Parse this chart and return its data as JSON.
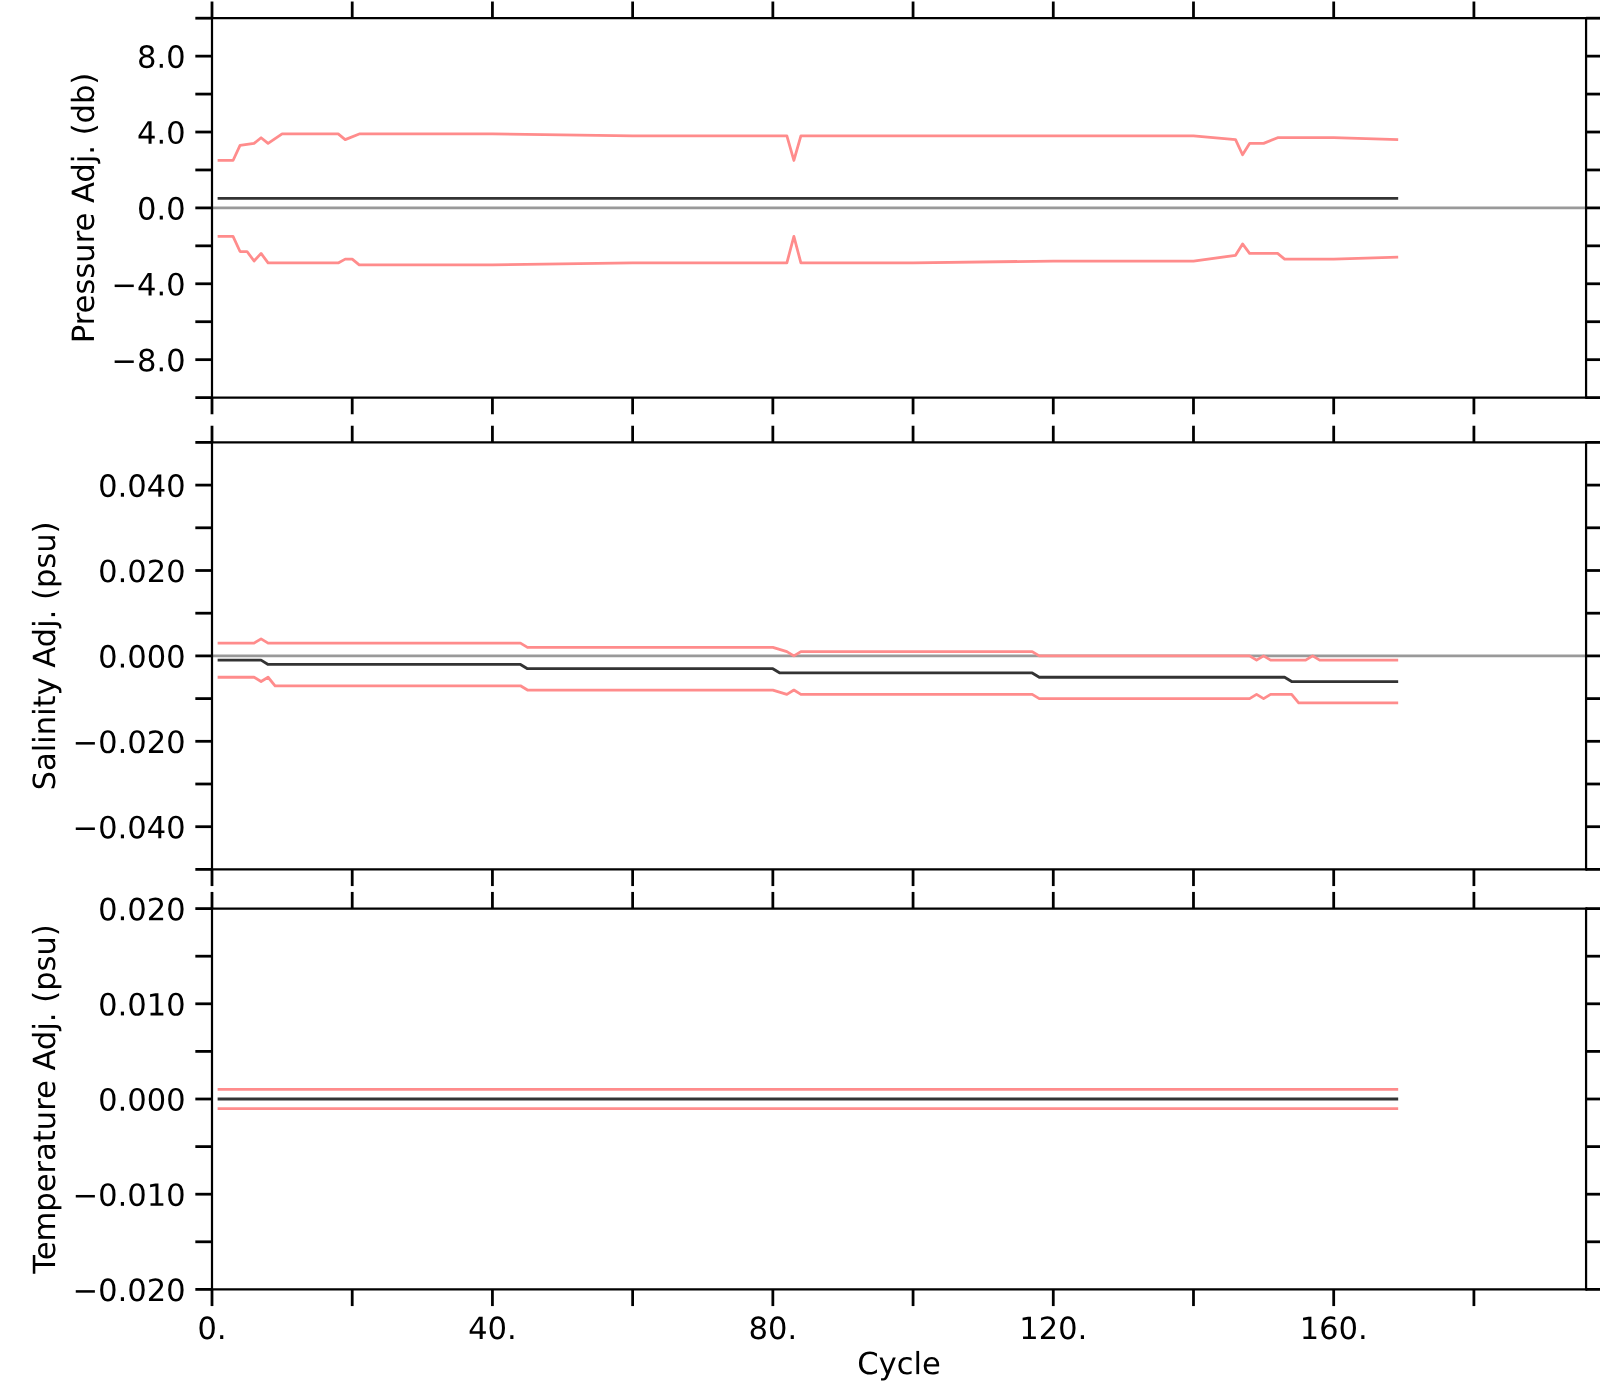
{
  "chart_data": [
    {
      "type": "line",
      "ylabel": "Pressure Adj. (db)",
      "xlim": [
        0,
        196
      ],
      "ylim": [
        -10,
        10
      ],
      "tick_labels": "y",
      "xticks": [
        {
          "value": 0,
          "label": null
        },
        {
          "value": 20,
          "label": null
        },
        {
          "value": 40,
          "label": null
        },
        {
          "value": 60,
          "label": null
        },
        {
          "value": 80,
          "label": null
        },
        {
          "value": 100,
          "label": null
        },
        {
          "value": 120,
          "label": null
        },
        {
          "value": 140,
          "label": null
        },
        {
          "value": 160,
          "label": null
        },
        {
          "value": 180,
          "label": null
        }
      ],
      "yticks": [
        {
          "value": -10,
          "label": null
        },
        {
          "value": -8,
          "label": "−8.0"
        },
        {
          "value": -6,
          "label": null
        },
        {
          "value": -4,
          "label": "−4.0"
        },
        {
          "value": -2,
          "label": null
        },
        {
          "value": 0,
          "label": "0.0"
        },
        {
          "value": 2,
          "label": null
        },
        {
          "value": 4,
          "label": "4.0"
        },
        {
          "value": 6,
          "label": null
        },
        {
          "value": 8,
          "label": "8.0"
        },
        {
          "value": 10,
          "label": null
        }
      ],
      "ref_lines": [
        {
          "axis": "y",
          "value": 0,
          "color": "#999999"
        }
      ],
      "series": [
        {
          "color": "#ff8c8c",
          "x": [
            1,
            3,
            4,
            6,
            7,
            8,
            10,
            18,
            19,
            21,
            40,
            60,
            82,
            83,
            84,
            100,
            120,
            140,
            146,
            147,
            148,
            150,
            152,
            155,
            160,
            169
          ],
          "values": [
            2.5,
            2.5,
            3.3,
            3.4,
            3.7,
            3.4,
            3.9,
            3.9,
            3.6,
            3.9,
            3.9,
            3.8,
            3.8,
            2.5,
            3.8,
            3.8,
            3.8,
            3.8,
            3.6,
            2.8,
            3.4,
            3.4,
            3.7,
            3.7,
            3.7,
            3.6
          ]
        },
        {
          "color": "#ff8c8c",
          "x": [
            1,
            3,
            4,
            5,
            6,
            7,
            8,
            10,
            18,
            19,
            20,
            21,
            40,
            60,
            82,
            83,
            84,
            100,
            120,
            140,
            146,
            147,
            148,
            152,
            153,
            160,
            169
          ],
          "values": [
            -1.5,
            -1.5,
            -2.3,
            -2.3,
            -2.8,
            -2.4,
            -2.9,
            -2.9,
            -2.9,
            -2.7,
            -2.7,
            -3.0,
            -3.0,
            -2.9,
            -2.9,
            -1.5,
            -2.9,
            -2.9,
            -2.8,
            -2.8,
            -2.5,
            -1.9,
            -2.4,
            -2.4,
            -2.7,
            -2.7,
            -2.6
          ]
        },
        {
          "color": "#333333",
          "x": [
            1,
            169
          ],
          "values": [
            0.5,
            0.5
          ]
        }
      ]
    },
    {
      "type": "line",
      "ylabel": "Salinity Adj. (psu)",
      "xlim": [
        0,
        196
      ],
      "ylim": [
        -0.05,
        0.05
      ],
      "tick_labels": "y",
      "xticks": [
        {
          "value": 0,
          "label": null
        },
        {
          "value": 20,
          "label": null
        },
        {
          "value": 40,
          "label": null
        },
        {
          "value": 60,
          "label": null
        },
        {
          "value": 80,
          "label": null
        },
        {
          "value": 100,
          "label": null
        },
        {
          "value": 120,
          "label": null
        },
        {
          "value": 140,
          "label": null
        },
        {
          "value": 160,
          "label": null
        },
        {
          "value": 180,
          "label": null
        }
      ],
      "yticks": [
        {
          "value": -0.05,
          "label": null
        },
        {
          "value": -0.04,
          "label": "−0.040"
        },
        {
          "value": -0.03,
          "label": null
        },
        {
          "value": -0.02,
          "label": "−0.020"
        },
        {
          "value": -0.01,
          "label": null
        },
        {
          "value": 0,
          "label": "0.000"
        },
        {
          "value": 0.01,
          "label": null
        },
        {
          "value": 0.02,
          "label": "0.020"
        },
        {
          "value": 0.03,
          "label": null
        },
        {
          "value": 0.04,
          "label": "0.040"
        },
        {
          "value": 0.05,
          "label": null
        }
      ],
      "ref_lines": [
        {
          "axis": "y",
          "value": 0,
          "color": "#999999"
        }
      ],
      "series": [
        {
          "color": "#ff8c8c",
          "x": [
            1,
            6,
            7,
            8,
            44,
            45,
            80,
            82,
            83,
            84,
            117,
            118,
            148,
            149,
            150,
            151,
            152,
            156,
            157,
            158,
            169
          ],
          "values": [
            0.003,
            0.003,
            0.004,
            0.003,
            0.003,
            0.002,
            0.002,
            0.001,
            0.0,
            0.001,
            0.001,
            0.0,
            0.0,
            -0.001,
            0.0,
            -0.001,
            -0.001,
            -0.001,
            0.0,
            -0.001,
            -0.001
          ]
        },
        {
          "color": "#ff8c8c",
          "x": [
            1,
            6,
            7,
            8,
            9,
            44,
            45,
            80,
            82,
            83,
            84,
            117,
            118,
            148,
            149,
            150,
            151,
            154,
            155,
            169
          ],
          "values": [
            -0.005,
            -0.005,
            -0.006,
            -0.005,
            -0.007,
            -0.007,
            -0.008,
            -0.008,
            -0.009,
            -0.008,
            -0.009,
            -0.009,
            -0.01,
            -0.01,
            -0.009,
            -0.01,
            -0.009,
            -0.009,
            -0.011,
            -0.011
          ]
        },
        {
          "color": "#333333",
          "x": [
            1,
            7,
            8,
            44,
            45,
            80,
            81,
            117,
            118,
            153,
            154,
            169
          ],
          "values": [
            -0.001,
            -0.001,
            -0.002,
            -0.002,
            -0.003,
            -0.003,
            -0.004,
            -0.004,
            -0.005,
            -0.005,
            -0.006,
            -0.006
          ]
        }
      ]
    },
    {
      "type": "line",
      "ylabel": "Temperature Adj. (psu)",
      "xlabel": "Cycle",
      "xlim": [
        0,
        196
      ],
      "ylim": [
        -0.02,
        0.02
      ],
      "xticks": [
        {
          "value": 0,
          "label": "0."
        },
        {
          "value": 20,
          "label": null
        },
        {
          "value": 40,
          "label": "40."
        },
        {
          "value": 60,
          "label": null
        },
        {
          "value": 80,
          "label": "80."
        },
        {
          "value": 100,
          "label": null
        },
        {
          "value": 120,
          "label": "120."
        },
        {
          "value": 140,
          "label": null
        },
        {
          "value": 160,
          "label": "160."
        },
        {
          "value": 180,
          "label": null
        }
      ],
      "yticks": [
        {
          "value": -0.02,
          "label": "−0.020"
        },
        {
          "value": -0.015,
          "label": null
        },
        {
          "value": -0.01,
          "label": "−0.010"
        },
        {
          "value": -0.005,
          "label": null
        },
        {
          "value": 0,
          "label": "0.000"
        },
        {
          "value": 0.005,
          "label": null
        },
        {
          "value": 0.01,
          "label": "0.010"
        },
        {
          "value": 0.015,
          "label": null
        },
        {
          "value": 0.02,
          "label": "0.020"
        }
      ],
      "series": [
        {
          "color": "#ff8c8c",
          "x": [
            1,
            169
          ],
          "values": [
            0.001,
            0.001
          ]
        },
        {
          "color": "#ff8c8c",
          "x": [
            1,
            169
          ],
          "values": [
            -0.001,
            -0.001
          ]
        },
        {
          "color": "#333333",
          "x": [
            1,
            169
          ],
          "values": [
            0,
            0
          ]
        }
      ]
    }
  ]
}
